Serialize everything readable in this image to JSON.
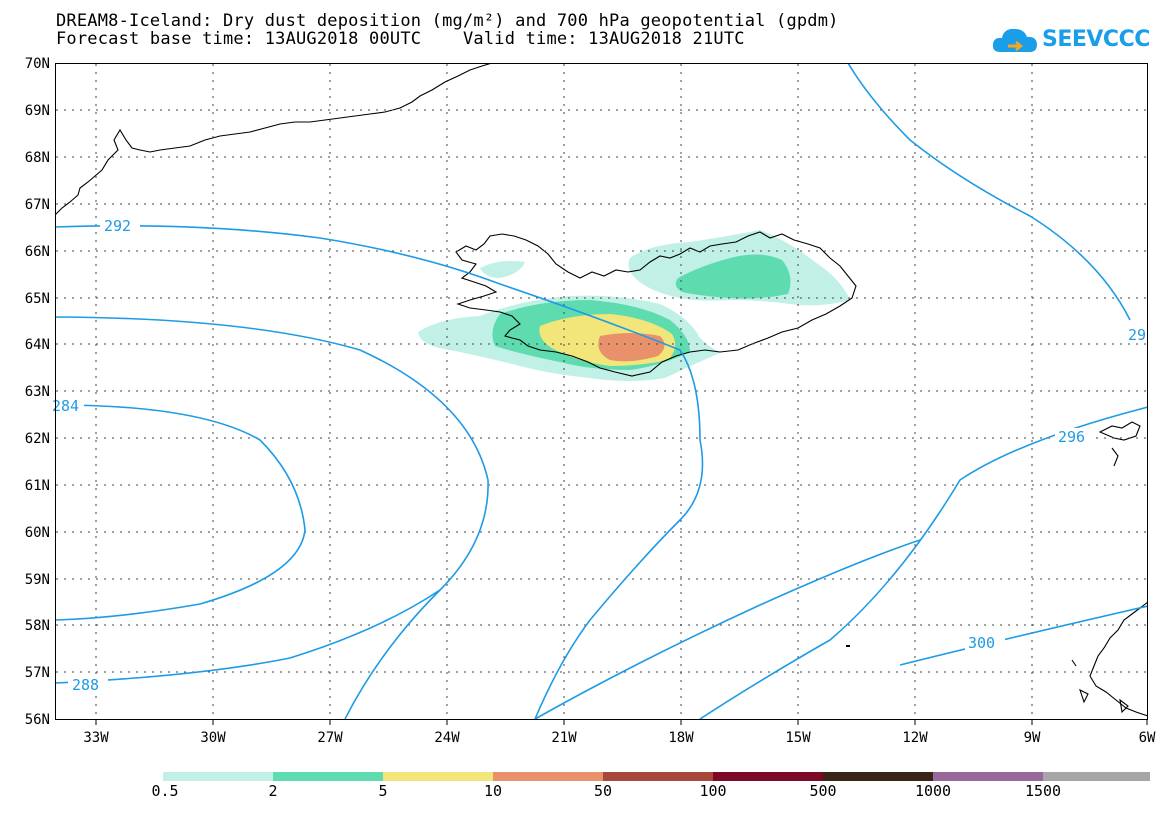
{
  "header": {
    "title_line1": "DREAM8-Iceland: Dry dust deposition (mg/m²) and 700 hPa geopotential (gpdm)",
    "title_line2": "Forecast base time: 13AUG2018 00UTC    Valid time: 13AUG2018 21UTC"
  },
  "logo": {
    "text": "SEEVCCC",
    "icon": "cloud-logo-icon",
    "color": "#1a9ee8"
  },
  "map": {
    "lat_labels": [
      "70N",
      "69N",
      "68N",
      "67N",
      "66N",
      "65N",
      "64N",
      "63N",
      "62N",
      "61N",
      "60N",
      "59N",
      "58N",
      "57N",
      "56N"
    ],
    "lon_labels": [
      "33W",
      "30W",
      "27W",
      "24W",
      "21W",
      "18W",
      "15W",
      "12W",
      "9W",
      "6W"
    ],
    "contour_labels": [
      "292",
      "284",
      "288",
      "296",
      "300",
      "29"
    ],
    "contour_color": "#1e9be6",
    "coastline_color": "#000000"
  },
  "colorbar": {
    "labels": [
      "0.5",
      "2",
      "5",
      "10",
      "50",
      "100",
      "500",
      "1000",
      "1500"
    ],
    "colors": [
      "#c0f0e6",
      "#5edcb0",
      "#f2e67a",
      "#e8916a",
      "#a8483c",
      "#7c0a26",
      "#3a2418",
      "#96689c",
      "#a6a6a6"
    ]
  }
}
